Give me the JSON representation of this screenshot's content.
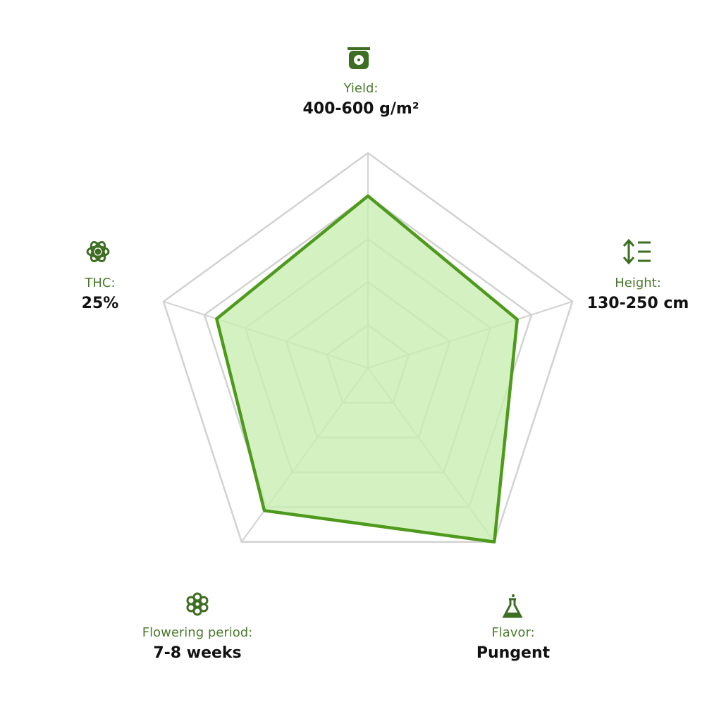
{
  "chart_data": {
    "type": "radar",
    "categories": [
      "Yield:",
      "Height:",
      "Flavor:",
      "Flowering period:",
      "THC:"
    ],
    "category_values": [
      "400-600 g/m²",
      "130-250 cm",
      "Pungent",
      "7-8 weeks",
      "25%"
    ],
    "values": [
      80,
      73,
      100,
      82,
      74
    ],
    "color": "#4e9a1c",
    "fill_color": "#c9efb2",
    "ylim": [
      0,
      100
    ],
    "yticks": [
      20,
      40,
      60,
      80,
      100
    ],
    "grid": true
  }
}
